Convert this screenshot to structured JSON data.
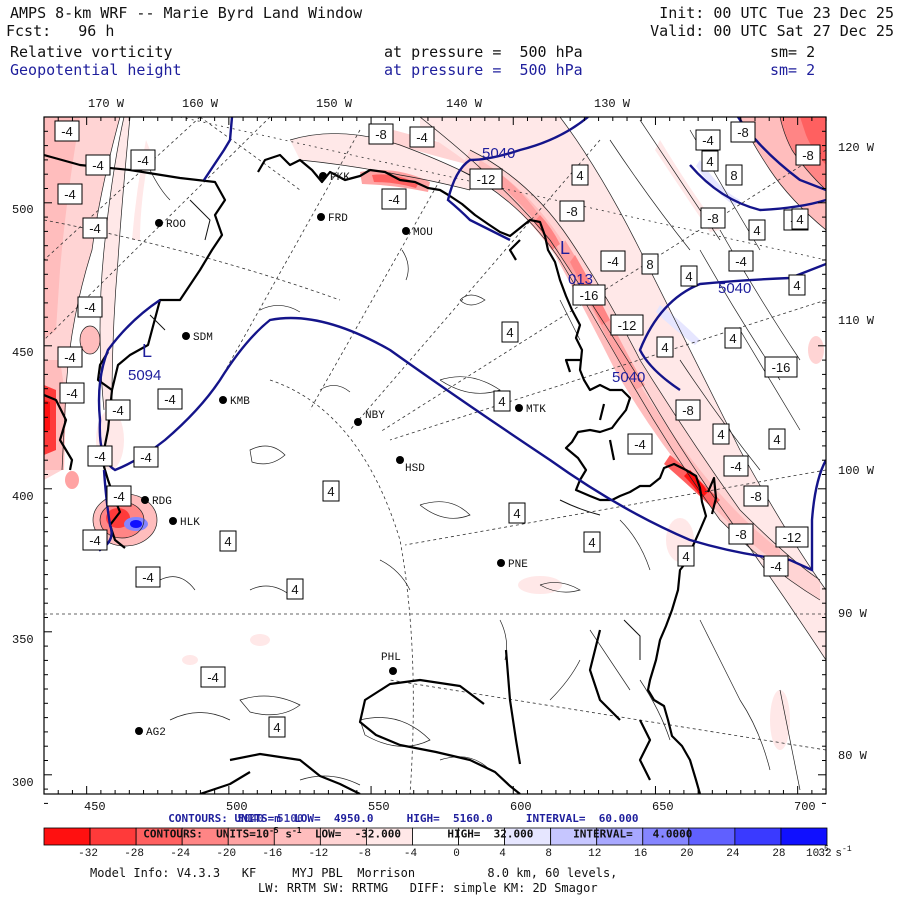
{
  "header": {
    "title": "AMPS 8-km WRF -- Marie Byrd Land Window",
    "init": "Init: 00 UTC Tue 23 Dec 25",
    "fcst": "Fcst:   96 h",
    "valid": "Valid: 00 UTC Sat 27 Dec 25",
    "field1": {
      "name": "Relative vorticity",
      "level": "at pressure =  500 hPa",
      "sm": "sm= 2"
    },
    "field2": {
      "name": "Geopotential height",
      "level": "at pressure =  500 hPa",
      "sm": "sm= 2"
    }
  },
  "colors": {
    "height": "#14148a",
    "black": "#111111",
    "scale": [
      "#ff1010",
      "#ff3a3a",
      "#ff6060",
      "#ff8585",
      "#ffa3a3",
      "#ffbdbd",
      "#ffd4d4",
      "#ffe8e8",
      "#ffffff",
      "#ffffff",
      "#e6e6ff",
      "#c6c6ff",
      "#a8a8ff",
      "#8585ff",
      "#6060ff",
      "#3a3aff",
      "#1010ff"
    ]
  },
  "axes": {
    "x_ticks": [
      "450",
      "500",
      "550",
      "600",
      "650",
      "700"
    ],
    "y_ticks": [
      "500",
      "450",
      "400",
      "350",
      "300"
    ],
    "top_lon": [
      "170 W",
      "160 W",
      "150 W",
      "140 W",
      "130 W"
    ],
    "right_lon": [
      "120 W",
      "110 W",
      "100 W",
      "90 W",
      "80 W"
    ]
  },
  "stations": [
    {
      "id": "ROO"
    },
    {
      "id": "FRD"
    },
    {
      "id": "MOU"
    },
    {
      "id": "SDM"
    },
    {
      "id": "KMB"
    },
    {
      "id": "NBY"
    },
    {
      "id": "MTK"
    },
    {
      "id": "HSD"
    },
    {
      "id": "RDG"
    },
    {
      "id": "HLK"
    },
    {
      "id": "PNE"
    },
    {
      "id": "PHL"
    },
    {
      "id": "AG2"
    },
    {
      "id": "PKK"
    }
  ],
  "vort_labels": [
    "-4",
    "-4",
    "-4",
    "-4",
    "-4",
    "-4",
    "-4",
    "-4",
    "-4",
    "-4",
    "-4",
    "-4",
    "-4",
    "-4",
    "-4",
    "-4",
    "-8",
    "-4",
    "-4",
    "-12",
    "-8",
    "-4",
    "-16",
    "-12",
    "-4",
    "4",
    "4",
    "4",
    "4",
    "4",
    "4",
    "4",
    "4",
    "4",
    "4",
    "4",
    "-4",
    "-8",
    "-8",
    "-12",
    "-4",
    "-4",
    "-8",
    "-8",
    "4",
    "4",
    "-8",
    "-4",
    "4",
    "4",
    "-16",
    "-8",
    "8",
    "4",
    "-4",
    "4",
    "8",
    "4",
    "-4",
    "4"
  ],
  "height_labels": [
    "5040",
    "5040",
    "5040",
    "5094"
  ],
  "low_symbols": [
    "L",
    "L"
  ],
  "overlap_label": "013",
  "contours_height": {
    "label": "CONTOURS: UNITS=m  LOW=  4950.0     HIGH=  5160.0     INTERVAL=  60.000",
    "label_overprint": "5040  5100"
  },
  "contours_vort": {
    "prefix": "CONTOURS:  UNITS=10",
    "exp": "-5",
    "units": " s",
    "units_exp": "-1",
    "rest": "  LOW=  -32.000       HIGH=  32.000      INTERVAL=   4.0000"
  },
  "colorbar": {
    "ticks": [
      "-32",
      "-28",
      "-24",
      "-20",
      "-16",
      "-12",
      "-8",
      "-4",
      "0",
      "4",
      "8",
      "12",
      "16",
      "20",
      "24",
      "28",
      "32"
    ],
    "units": "10",
    "units_exp": "-5",
    "units_s": " s",
    "units_s_exp": "-1"
  },
  "model_info": {
    "line1": "Model Info: V4.3.3   KF     MYJ PBL  Morrison          8.0 km, 60 levels,",
    "line2": "LW: RRTM SW: RRTMG   DIFF: simple KM: 2D Smagor"
  }
}
